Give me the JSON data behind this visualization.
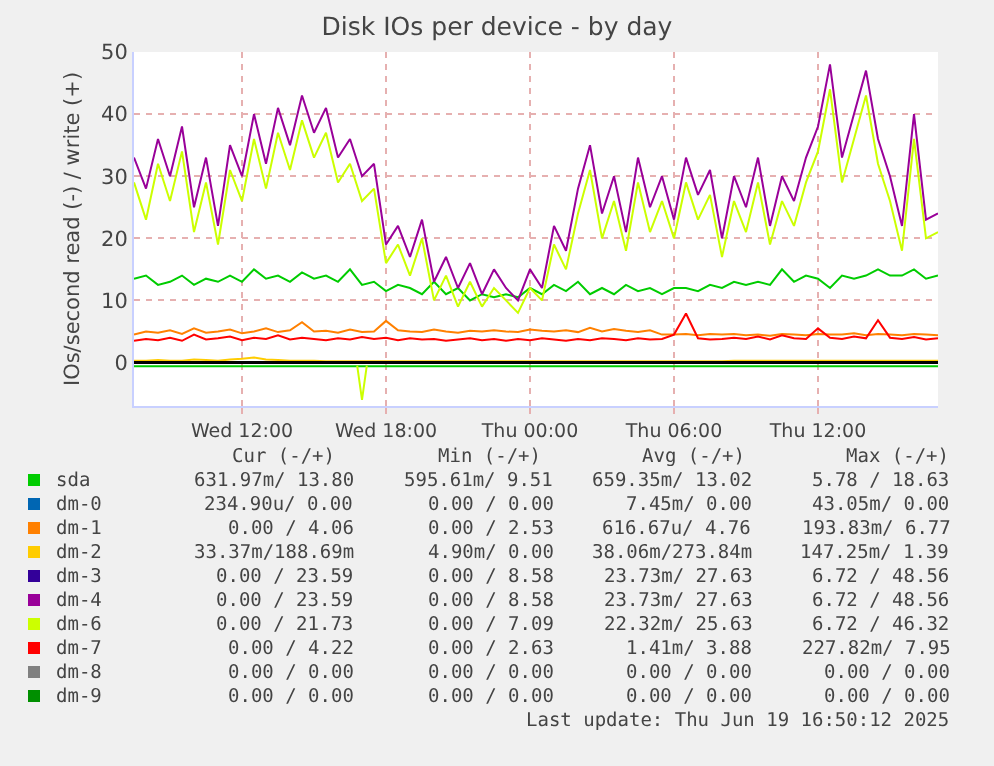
{
  "chart_data": {
    "type": "line",
    "title": "Disk IOs per device - by day",
    "ylabel": "IOs/second read (-) / write (+)",
    "x": [
      "2025-06-18T07:30",
      "2025-06-18T08:00",
      "2025-06-18T08:30",
      "2025-06-18T09:00",
      "2025-06-18T09:30",
      "2025-06-18T10:00",
      "2025-06-18T10:30",
      "2025-06-18T11:00",
      "2025-06-18T11:30",
      "2025-06-18T12:00",
      "2025-06-18T12:30",
      "2025-06-18T13:00",
      "2025-06-18T13:30",
      "2025-06-18T14:00",
      "2025-06-18T14:30",
      "2025-06-18T15:00",
      "2025-06-18T15:30",
      "2025-06-18T16:00",
      "2025-06-18T16:30",
      "2025-06-18T17:00",
      "2025-06-18T17:30",
      "2025-06-18T18:00",
      "2025-06-18T18:30",
      "2025-06-18T19:00",
      "2025-06-18T19:30",
      "2025-06-18T20:00",
      "2025-06-18T20:30",
      "2025-06-18T21:00",
      "2025-06-18T21:30",
      "2025-06-18T22:00",
      "2025-06-18T22:30",
      "2025-06-18T23:00",
      "2025-06-18T23:30",
      "2025-06-19T00:00",
      "2025-06-19T00:30",
      "2025-06-19T01:00",
      "2025-06-19T01:30",
      "2025-06-19T02:00",
      "2025-06-19T02:30",
      "2025-06-19T03:00",
      "2025-06-19T03:30",
      "2025-06-19T04:00",
      "2025-06-19T04:30",
      "2025-06-19T05:00",
      "2025-06-19T05:30",
      "2025-06-19T06:00",
      "2025-06-19T06:30",
      "2025-06-19T07:00",
      "2025-06-19T07:30",
      "2025-06-19T08:00",
      "2025-06-19T08:30",
      "2025-06-19T09:00",
      "2025-06-19T09:30",
      "2025-06-19T10:00",
      "2025-06-19T10:30",
      "2025-06-19T11:00",
      "2025-06-19T11:30",
      "2025-06-19T12:00",
      "2025-06-19T12:30",
      "2025-06-19T13:00",
      "2025-06-19T13:30",
      "2025-06-19T14:00",
      "2025-06-19T14:30",
      "2025-06-19T15:00",
      "2025-06-19T15:30",
      "2025-06-19T16:00",
      "2025-06-19T16:30",
      "2025-06-19T17:00"
    ],
    "xlim": [
      "2025-06-18T07:30",
      "2025-06-19T17:00"
    ],
    "xticks": [
      {
        "value": "2025-06-18T12:00",
        "label": "Wed 12:00"
      },
      {
        "value": "2025-06-18T18:00",
        "label": "Wed 18:00"
      },
      {
        "value": "2025-06-19T00:00",
        "label": "Thu 00:00"
      },
      {
        "value": "2025-06-19T06:00",
        "label": "Thu 06:00"
      },
      {
        "value": "2025-06-19T12:00",
        "label": "Thu 12:00"
      }
    ],
    "ylim": [
      -7,
      50
    ],
    "yticks": [
      0,
      10,
      20,
      30,
      40,
      50
    ],
    "grid": true,
    "legend": "bottom",
    "marker": "none",
    "line_style": "solid",
    "ref_lines": [
      {
        "axis": "y",
        "value": 0,
        "color": "#000000"
      }
    ],
    "series": [
      {
        "name": "sda",
        "color": "#00cc00",
        "values": [
          13.5,
          14,
          12.5,
          13,
          14,
          12.5,
          13.5,
          13,
          14,
          13,
          15,
          13.5,
          14,
          13,
          14.5,
          13.5,
          14,
          13,
          15,
          12.5,
          13,
          11.5,
          12.5,
          12,
          11,
          13,
          11,
          12,
          10,
          11,
          10.5,
          11,
          10.5,
          12,
          11,
          12.5,
          11.5,
          13,
          11,
          12,
          11,
          12.5,
          11.5,
          12,
          11,
          12,
          12,
          11.5,
          12.5,
          12,
          13,
          12.5,
          13,
          12.5,
          15,
          13,
          14,
          13.5,
          12,
          14,
          13.5,
          14,
          15,
          14,
          14,
          15,
          13.5,
          14
        ]
      },
      {
        "name": "dm-0",
        "color": "#0066b3",
        "values": [
          null,
          null,
          null,
          null,
          null,
          null,
          null,
          null,
          null,
          null,
          null,
          null,
          null,
          null,
          null,
          null,
          null,
          null,
          null,
          null,
          null,
          null,
          null,
          null,
          null,
          null,
          null,
          null,
          null,
          null,
          null,
          null,
          null,
          null,
          null,
          null,
          null,
          null,
          null,
          null,
          null,
          null,
          null,
          null,
          null,
          null,
          null,
          null,
          null,
          null,
          null,
          null,
          null,
          null,
          null,
          null,
          null,
          null,
          null,
          null,
          null,
          null,
          null,
          null,
          null,
          null,
          null,
          null
        ]
      },
      {
        "name": "dm-1",
        "color": "#ff8000",
        "values": [
          4.5,
          5,
          4.8,
          5.2,
          4.6,
          5.5,
          4.8,
          5,
          5.3,
          4.7,
          5,
          5.5,
          4.9,
          5.2,
          6.5,
          5,
          5.1,
          4.8,
          5.3,
          4.9,
          5,
          6.7,
          5.2,
          5,
          4.9,
          5.3,
          5,
          4.8,
          5.1,
          5,
          5.2,
          5,
          4.9,
          5.3,
          5.1,
          5,
          5.2,
          4.9,
          5.6,
          5,
          5.4,
          5.1,
          4.9,
          5.2,
          4.5,
          4.5,
          4.6,
          4.4,
          4.6,
          4.5,
          4.6,
          4.4,
          4.5,
          4.3,
          4.6,
          4.5,
          4.4,
          4.6,
          4.5,
          4.5,
          4.7,
          4.4,
          4.6,
          4.5,
          4.4,
          4.6,
          4.5,
          4.4
        ]
      },
      {
        "name": "dm-2",
        "color": "#ffcc00",
        "values": [
          0.3,
          0.3,
          0.4,
          0.3,
          0.3,
          0.5,
          0.4,
          0.3,
          0.5,
          0.6,
          0.8,
          0.5,
          0.4,
          0.3,
          0.3,
          0.3,
          0.2,
          0.2,
          0.2,
          0.2,
          0.2,
          0.2,
          0.2,
          0.2,
          0.2,
          0.2,
          0.2,
          0.2,
          0.2,
          0.2,
          0.2,
          0.2,
          0.2,
          0.2,
          0.2,
          0.2,
          0.2,
          0.2,
          0.2,
          0.2,
          0.2,
          0.2,
          0.2,
          0.2,
          0.2,
          0.2,
          0.2,
          0.2,
          0.2,
          0.2,
          0.3,
          0.3,
          0.3,
          0.3,
          0.3,
          0.3,
          0.3,
          0.3,
          0.3,
          0.3,
          0.3,
          0.3,
          0.3,
          0.3,
          0.3,
          0.3,
          0.3,
          0.3
        ]
      },
      {
        "name": "dm-3",
        "color": "#330099",
        "values": [
          null,
          null,
          null,
          null,
          null,
          null,
          null,
          null,
          null,
          null,
          null,
          null,
          null,
          null,
          null,
          null,
          null,
          null,
          null,
          null,
          null,
          null,
          null,
          null,
          null,
          null,
          null,
          null,
          null,
          null,
          null,
          null,
          null,
          null,
          null,
          null,
          null,
          null,
          null,
          null,
          null,
          null,
          null,
          null,
          null,
          null,
          null,
          null,
          null,
          null,
          null,
          null,
          null,
          null,
          null,
          null,
          null,
          null,
          null,
          null,
          null,
          null,
          null,
          null,
          null,
          null,
          null,
          null
        ]
      },
      {
        "name": "dm-4",
        "color": "#990099",
        "values": [
          33,
          28,
          36,
          30,
          38,
          25,
          33,
          22,
          35,
          30,
          40,
          32,
          41,
          35,
          43,
          37,
          41,
          33,
          36,
          30,
          32,
          19,
          22,
          17,
          23,
          13,
          17,
          12,
          16,
          11,
          15,
          12,
          10,
          15,
          12,
          22,
          18,
          28,
          35,
          24,
          30,
          21,
          33,
          25,
          30,
          23,
          33,
          27,
          31,
          20,
          30,
          25,
          33,
          22,
          30,
          26,
          33,
          38,
          48,
          33,
          40,
          47,
          36,
          30,
          22,
          40,
          23,
          24
        ]
      },
      {
        "name": "dm-6",
        "color": "#ccff00",
        "values": [
          29,
          23,
          32,
          26,
          34,
          21,
          29,
          19,
          31,
          26,
          36,
          28,
          37,
          31,
          39,
          33,
          37,
          29,
          32,
          26,
          28,
          16,
          19,
          14,
          20,
          10,
          14,
          9,
          13,
          9,
          12,
          10,
          8,
          12,
          10,
          19,
          15,
          24,
          31,
          20,
          26,
          18,
          29,
          21,
          26,
          20,
          29,
          23,
          27,
          17,
          26,
          21,
          29,
          19,
          26,
          22,
          29,
          34,
          44,
          29,
          36,
          43,
          32,
          26,
          18,
          36,
          20,
          21
        ]
      },
      {
        "name": "dm-7",
        "color": "#ff0000",
        "values": [
          3.5,
          3.8,
          3.6,
          4,
          3.5,
          4.5,
          3.7,
          3.9,
          4.2,
          3.6,
          4,
          3.8,
          4.4,
          3.7,
          4,
          3.8,
          3.6,
          3.9,
          3.7,
          4.1,
          3.8,
          4,
          3.6,
          3.9,
          3.7,
          3.8,
          3.5,
          3.7,
          3.9,
          3.6,
          3.8,
          3.5,
          3.8,
          3.6,
          3.9,
          3.7,
          3.5,
          3.8,
          3.6,
          3.9,
          3.8,
          3.6,
          3.9,
          3.7,
          3.8,
          4.5,
          7.9,
          3.9,
          3.7,
          3.8,
          4,
          3.8,
          4.2,
          3.7,
          4.4,
          3.9,
          3.8,
          5.5,
          4,
          3.8,
          4.2,
          3.9,
          6.8,
          4,
          3.8,
          4.1,
          3.7,
          3.9
        ]
      },
      {
        "name": "dm-8",
        "color": "#808080",
        "values": [
          null,
          null,
          null,
          null,
          null,
          null,
          null,
          null,
          null,
          null,
          null,
          null,
          null,
          null,
          null,
          null,
          null,
          null,
          null,
          null,
          null,
          null,
          null,
          null,
          null,
          null,
          null,
          null,
          null,
          null,
          null,
          null,
          null,
          null,
          null,
          null,
          null,
          null,
          null,
          null,
          null,
          null,
          null,
          null,
          null,
          null,
          null,
          null,
          null,
          null,
          null,
          null,
          null,
          null,
          null,
          null,
          null,
          null,
          null,
          null,
          null,
          null,
          null,
          null,
          null,
          null,
          null,
          null
        ]
      },
      {
        "name": "dm-9",
        "color": "#008f00",
        "values": [
          null,
          null,
          null,
          null,
          null,
          null,
          null,
          null,
          null,
          null,
          null,
          null,
          null,
          null,
          null,
          null,
          null,
          null,
          null,
          null,
          null,
          null,
          null,
          null,
          null,
          null,
          null,
          null,
          null,
          null,
          null,
          null,
          null,
          null,
          null,
          null,
          null,
          null,
          null,
          null,
          null,
          null,
          null,
          null,
          null,
          null,
          null,
          null,
          null,
          null,
          null,
          null,
          null,
          null,
          null,
          null,
          null,
          null,
          null,
          null,
          null,
          null,
          null,
          null,
          null,
          null,
          null,
          null
        ]
      },
      {
        "color": "#00cc00",
        "x": [
          "2025-06-18T07:30",
          "2025-06-19T17:00"
        ],
        "values": [
          -0.6,
          -0.6
        ]
      },
      {
        "color": "#ccff00",
        "x": [
          "2025-06-18T16:48",
          "2025-06-18T17:00",
          "2025-06-18T17:12"
        ],
        "values": [
          -0.5,
          -6,
          -0.5
        ]
      }
    ],
    "annotations": [
      "Cur (-/+)",
      "Min (-/+)",
      "Avg (-/+)",
      "Max (-/+)",
      "631.97m/ 13.80",
      "595.61m/ 9.51",
      "659.35m/ 13.02",
      "5.78 / 18.63",
      "234.90u/ 0.00",
      "0.00 / 0.00",
      "7.45m/ 0.00",
      "43.05m/ 0.00",
      "0.00 / 4.06",
      "0.00 / 2.53",
      "616.67u/ 4.76",
      "193.83m/ 6.77",
      "33.37m/188.69m",
      "4.90m/ 0.00",
      "38.06m/273.84m",
      "147.25m/ 1.39",
      "0.00 / 23.59",
      "0.00 / 8.58",
      "23.73m/ 27.63",
      "6.72 / 48.56",
      "0.00 / 23.59",
      "0.00 / 8.58",
      "23.73m/ 27.63",
      "6.72 / 48.56",
      "0.00 / 21.73",
      "0.00 / 7.09",
      "22.32m/ 25.63",
      "6.72 / 46.32",
      "0.00 / 4.22",
      "0.00 / 2.63",
      "1.41m/ 3.88",
      "227.82m/ 7.95",
      "0.00 / 0.00",
      "0.00 / 0.00",
      "0.00 / 0.00",
      "0.00 / 0.00",
      "0.00 / 0.00",
      "0.00 / 0.00",
      "0.00 / 0.00",
      "0.00 / 0.00",
      "Last update: Thu Jun 19 16:50:12 2025"
    ]
  }
}
